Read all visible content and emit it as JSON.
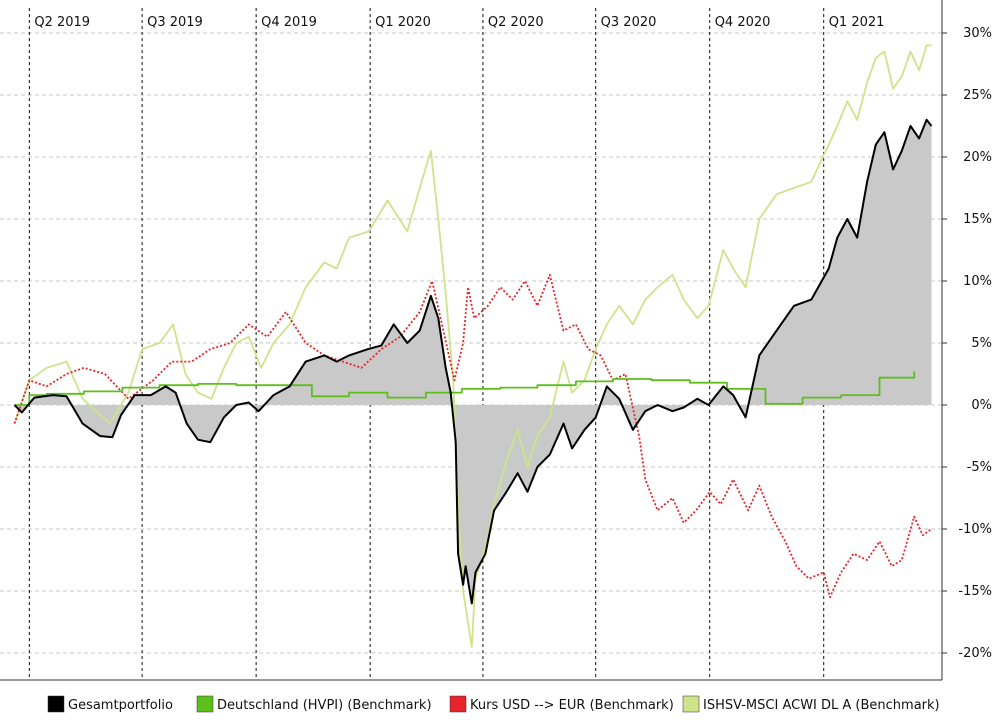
{
  "chart_data": {
    "type": "line",
    "title": "",
    "xlabel": "",
    "ylabel": "",
    "y_unit": "%",
    "ylim": [
      -21,
      30.5
    ],
    "y_ticks": [
      30,
      25,
      20,
      15,
      10,
      5,
      0,
      -5,
      -10,
      -15,
      -20
    ],
    "y_tick_labels": [
      "30%",
      "25%",
      "20%",
      "15%",
      "10%",
      "5%",
      "0%",
      "-5%",
      "-10%",
      "-15%",
      "-20%"
    ],
    "x_range": [
      "2019-03-18",
      "2021-03-31"
    ],
    "quarters": [
      {
        "label": "Q2 2019",
        "date": "2019-04-01"
      },
      {
        "label": "Q3 2019",
        "date": "2019-07-01"
      },
      {
        "label": "Q4 2019",
        "date": "2019-10-01"
      },
      {
        "label": "Q1 2020",
        "date": "2020-01-01"
      },
      {
        "label": "Q2 2020",
        "date": "2020-04-01"
      },
      {
        "label": "Q3 2020",
        "date": "2020-07-01"
      },
      {
        "label": "Q4 2020",
        "date": "2020-10-01"
      },
      {
        "label": "Q1 2021",
        "date": "2021-01-01"
      }
    ],
    "grid": "horizontal dashed",
    "legend_position": "bottom",
    "series": [
      {
        "name": "Gesamtportfolio",
        "color": "#000000",
        "style": "solid",
        "fill_to_zero": true,
        "points": [
          [
            "2019-03-20",
            0
          ],
          [
            "2019-03-26",
            -0.6
          ],
          [
            "2019-04-05",
            0.6
          ],
          [
            "2019-04-20",
            0.8
          ],
          [
            "2019-05-01",
            0.7
          ],
          [
            "2019-05-14",
            -1.5
          ],
          [
            "2019-05-28",
            -2.5
          ],
          [
            "2019-06-07",
            -2.6
          ],
          [
            "2019-06-14",
            -0.8
          ],
          [
            "2019-06-25",
            0.8
          ],
          [
            "2019-07-08",
            0.8
          ],
          [
            "2019-07-20",
            1.5
          ],
          [
            "2019-07-28",
            1.0
          ],
          [
            "2019-08-06",
            -1.5
          ],
          [
            "2019-08-15",
            -2.8
          ],
          [
            "2019-08-25",
            -3.0
          ],
          [
            "2019-09-05",
            -1.0
          ],
          [
            "2019-09-15",
            0.0
          ],
          [
            "2019-09-25",
            0.2
          ],
          [
            "2019-10-03",
            -0.5
          ],
          [
            "2019-10-15",
            0.8
          ],
          [
            "2019-10-28",
            1.5
          ],
          [
            "2019-11-10",
            3.5
          ],
          [
            "2019-11-25",
            4.0
          ],
          [
            "2019-12-05",
            3.5
          ],
          [
            "2019-12-15",
            4.0
          ],
          [
            "2019-12-30",
            4.5
          ],
          [
            "2020-01-10",
            4.8
          ],
          [
            "2020-01-20",
            6.5
          ],
          [
            "2020-01-31",
            5.0
          ],
          [
            "2020-02-10",
            6.0
          ],
          [
            "2020-02-19",
            8.8
          ],
          [
            "2020-02-25",
            7.0
          ],
          [
            "2020-03-02",
            3.0
          ],
          [
            "2020-03-06",
            1.0
          ],
          [
            "2020-03-10",
            -3.0
          ],
          [
            "2020-03-12",
            -12.0
          ],
          [
            "2020-03-16",
            -14.5
          ],
          [
            "2020-03-18",
            -13.0
          ],
          [
            "2020-03-23",
            -16.0
          ],
          [
            "2020-03-26",
            -13.5
          ],
          [
            "2020-04-03",
            -12.0
          ],
          [
            "2020-04-10",
            -8.5
          ],
          [
            "2020-04-20",
            -7.0
          ],
          [
            "2020-04-29",
            -5.5
          ],
          [
            "2020-05-07",
            -7.0
          ],
          [
            "2020-05-15",
            -5.0
          ],
          [
            "2020-05-25",
            -4.0
          ],
          [
            "2020-06-05",
            -1.5
          ],
          [
            "2020-06-12",
            -3.5
          ],
          [
            "2020-06-22",
            -2.0
          ],
          [
            "2020-07-01",
            -1.0
          ],
          [
            "2020-07-10",
            1.5
          ],
          [
            "2020-07-20",
            0.5
          ],
          [
            "2020-07-31",
            -2.0
          ],
          [
            "2020-08-10",
            -0.5
          ],
          [
            "2020-08-20",
            0.0
          ],
          [
            "2020-09-01",
            -0.5
          ],
          [
            "2020-09-10",
            -0.2
          ],
          [
            "2020-09-21",
            0.5
          ],
          [
            "2020-09-30",
            0.0
          ],
          [
            "2020-10-12",
            1.5
          ],
          [
            "2020-10-20",
            0.8
          ],
          [
            "2020-10-30",
            -1.0
          ],
          [
            "2020-11-10",
            4.0
          ],
          [
            "2020-11-24",
            6.0
          ],
          [
            "2020-12-08",
            8.0
          ],
          [
            "2020-12-22",
            8.5
          ],
          [
            "2021-01-05",
            11.0
          ],
          [
            "2021-01-12",
            13.5
          ],
          [
            "2021-01-20",
            15.0
          ],
          [
            "2021-01-28",
            13.5
          ],
          [
            "2021-02-05",
            18.0
          ],
          [
            "2021-02-12",
            21.0
          ],
          [
            "2021-02-19",
            22.0
          ],
          [
            "2021-02-26",
            19.0
          ],
          [
            "2021-03-05",
            20.5
          ],
          [
            "2021-03-12",
            22.5
          ],
          [
            "2021-03-19",
            21.5
          ],
          [
            "2021-03-25",
            23.0
          ],
          [
            "2021-03-29",
            22.5
          ]
        ]
      },
      {
        "name": "Deutschland (HVPI) (Benchmark)",
        "color": "#5cbf1c",
        "style": "solid",
        "step": true,
        "points": [
          [
            "2019-03-20",
            0
          ],
          [
            "2019-04-01",
            0.8
          ],
          [
            "2019-04-15",
            0.9
          ],
          [
            "2019-05-15",
            1.1
          ],
          [
            "2019-06-15",
            1.4
          ],
          [
            "2019-07-15",
            1.6
          ],
          [
            "2019-08-15",
            1.7
          ],
          [
            "2019-09-15",
            1.6
          ],
          [
            "2019-10-15",
            1.6
          ],
          [
            "2019-11-15",
            0.7
          ],
          [
            "2019-12-15",
            1.0
          ],
          [
            "2020-01-15",
            0.6
          ],
          [
            "2020-02-15",
            1.0
          ],
          [
            "2020-03-15",
            1.3
          ],
          [
            "2020-04-15",
            1.4
          ],
          [
            "2020-05-15",
            1.6
          ],
          [
            "2020-06-15",
            1.9
          ],
          [
            "2020-07-15",
            2.1
          ],
          [
            "2020-08-15",
            2.0
          ],
          [
            "2020-09-15",
            1.8
          ],
          [
            "2020-10-15",
            1.3
          ],
          [
            "2020-11-15",
            0.1
          ],
          [
            "2020-12-15",
            0.6
          ],
          [
            "2021-01-15",
            0.8
          ],
          [
            "2021-02-15",
            2.2
          ],
          [
            "2021-03-15",
            2.7
          ]
        ]
      },
      {
        "name": "Kurs USD --> EUR (Benchmark)",
        "color": "#e8232a",
        "style": "dotted",
        "points": [
          [
            "2019-03-20",
            -1.5
          ],
          [
            "2019-04-01",
            2.0
          ],
          [
            "2019-04-15",
            1.5
          ],
          [
            "2019-05-01",
            2.5
          ],
          [
            "2019-05-15",
            3.0
          ],
          [
            "2019-06-01",
            2.5
          ],
          [
            "2019-06-20",
            0.5
          ],
          [
            "2019-07-10",
            2.0
          ],
          [
            "2019-07-25",
            3.5
          ],
          [
            "2019-08-10",
            3.5
          ],
          [
            "2019-08-25",
            4.5
          ],
          [
            "2019-09-10",
            5.0
          ],
          [
            "2019-09-25",
            6.5
          ],
          [
            "2019-10-10",
            5.5
          ],
          [
            "2019-10-25",
            7.5
          ],
          [
            "2019-11-10",
            5.0
          ],
          [
            "2019-11-25",
            4.0
          ],
          [
            "2019-12-10",
            3.5
          ],
          [
            "2019-12-25",
            3.0
          ],
          [
            "2020-01-10",
            4.5
          ],
          [
            "2020-01-25",
            5.5
          ],
          [
            "2020-02-10",
            7.5
          ],
          [
            "2020-02-20",
            10.0
          ],
          [
            "2020-02-28",
            6.5
          ],
          [
            "2020-03-09",
            2.0
          ],
          [
            "2020-03-16",
            5.0
          ],
          [
            "2020-03-20",
            9.5
          ],
          [
            "2020-03-25",
            7.0
          ],
          [
            "2020-04-05",
            8.0
          ],
          [
            "2020-04-15",
            9.5
          ],
          [
            "2020-04-25",
            8.5
          ],
          [
            "2020-05-05",
            10.0
          ],
          [
            "2020-05-15",
            8.0
          ],
          [
            "2020-05-25",
            10.5
          ],
          [
            "2020-06-05",
            6.0
          ],
          [
            "2020-06-15",
            6.5
          ],
          [
            "2020-06-25",
            4.5
          ],
          [
            "2020-07-05",
            4.0
          ],
          [
            "2020-07-15",
            2.0
          ],
          [
            "2020-07-25",
            2.5
          ],
          [
            "2020-08-05",
            -2.5
          ],
          [
            "2020-08-10",
            -6.0
          ],
          [
            "2020-08-20",
            -8.5
          ],
          [
            "2020-09-01",
            -7.5
          ],
          [
            "2020-09-10",
            -9.5
          ],
          [
            "2020-09-20",
            -8.5
          ],
          [
            "2020-10-01",
            -7.0
          ],
          [
            "2020-10-10",
            -8.0
          ],
          [
            "2020-10-20",
            -6.0
          ],
          [
            "2020-11-01",
            -8.5
          ],
          [
            "2020-11-10",
            -6.5
          ],
          [
            "2020-11-20",
            -9.0
          ],
          [
            "2020-12-01",
            -11.0
          ],
          [
            "2020-12-10",
            -13.0
          ],
          [
            "2020-12-20",
            -14.0
          ],
          [
            "2021-01-01",
            -13.5
          ],
          [
            "2021-01-06",
            -15.5
          ],
          [
            "2021-01-15",
            -13.5
          ],
          [
            "2021-01-25",
            -12.0
          ],
          [
            "2021-02-05",
            -12.5
          ],
          [
            "2021-02-15",
            -11.0
          ],
          [
            "2021-02-25",
            -13.0
          ],
          [
            "2021-03-05",
            -12.5
          ],
          [
            "2021-03-15",
            -9.0
          ],
          [
            "2021-03-22",
            -10.5
          ],
          [
            "2021-03-29",
            -10.0
          ]
        ]
      },
      {
        "name": "ISHSV-MSCI ACWI DL A (Benchmark)",
        "color": "#cfe38a",
        "style": "solid",
        "points": [
          [
            "2019-03-20",
            -1.5
          ],
          [
            "2019-04-01",
            2.0
          ],
          [
            "2019-04-15",
            3.0
          ],
          [
            "2019-05-01",
            3.5
          ],
          [
            "2019-05-14",
            0.5
          ],
          [
            "2019-05-25",
            -0.5
          ],
          [
            "2019-06-05",
            -1.5
          ],
          [
            "2019-06-20",
            1.0
          ],
          [
            "2019-07-01",
            4.5
          ],
          [
            "2019-07-15",
            5.0
          ],
          [
            "2019-07-26",
            6.5
          ],
          [
            "2019-08-05",
            2.5
          ],
          [
            "2019-08-15",
            1.0
          ],
          [
            "2019-08-26",
            0.5
          ],
          [
            "2019-09-05",
            3.0
          ],
          [
            "2019-09-15",
            5.0
          ],
          [
            "2019-09-25",
            5.5
          ],
          [
            "2019-10-05",
            3.0
          ],
          [
            "2019-10-15",
            5.0
          ],
          [
            "2019-10-28",
            6.5
          ],
          [
            "2019-11-10",
            9.5
          ],
          [
            "2019-11-25",
            11.5
          ],
          [
            "2019-12-05",
            11.0
          ],
          [
            "2019-12-15",
            13.5
          ],
          [
            "2019-12-31",
            14.0
          ],
          [
            "2020-01-15",
            16.5
          ],
          [
            "2020-01-31",
            14.0
          ],
          [
            "2020-02-10",
            17.5
          ],
          [
            "2020-02-19",
            20.5
          ],
          [
            "2020-02-25",
            15.0
          ],
          [
            "2020-03-02",
            9.0
          ],
          [
            "2020-03-08",
            2.0
          ],
          [
            "2020-03-12",
            -8.0
          ],
          [
            "2020-03-16",
            -15.0
          ],
          [
            "2020-03-23",
            -19.5
          ],
          [
            "2020-03-26",
            -14.0
          ],
          [
            "2020-04-03",
            -11.5
          ],
          [
            "2020-04-10",
            -8.0
          ],
          [
            "2020-04-20",
            -4.5
          ],
          [
            "2020-04-29",
            -2.0
          ],
          [
            "2020-05-07",
            -5.0
          ],
          [
            "2020-05-15",
            -2.5
          ],
          [
            "2020-05-25",
            -1.0
          ],
          [
            "2020-06-05",
            3.5
          ],
          [
            "2020-06-12",
            1.0
          ],
          [
            "2020-06-22",
            2.0
          ],
          [
            "2020-07-01",
            4.5
          ],
          [
            "2020-07-10",
            6.5
          ],
          [
            "2020-07-20",
            8.0
          ],
          [
            "2020-07-31",
            6.5
          ],
          [
            "2020-08-10",
            8.5
          ],
          [
            "2020-08-20",
            9.5
          ],
          [
            "2020-09-01",
            10.5
          ],
          [
            "2020-09-10",
            8.5
          ],
          [
            "2020-09-21",
            7.0
          ],
          [
            "2020-09-30",
            8.0
          ],
          [
            "2020-10-12",
            12.5
          ],
          [
            "2020-10-20",
            11.0
          ],
          [
            "2020-10-30",
            9.5
          ],
          [
            "2020-11-10",
            15.0
          ],
          [
            "2020-11-24",
            17.0
          ],
          [
            "2020-12-08",
            17.5
          ],
          [
            "2020-12-22",
            18.0
          ],
          [
            "2021-01-05",
            21.0
          ],
          [
            "2021-01-12",
            22.5
          ],
          [
            "2021-01-20",
            24.5
          ],
          [
            "2021-01-28",
            23.0
          ],
          [
            "2021-02-05",
            26.0
          ],
          [
            "2021-02-12",
            28.0
          ],
          [
            "2021-02-19",
            28.5
          ],
          [
            "2021-02-26",
            25.5
          ],
          [
            "2021-03-05",
            26.5
          ],
          [
            "2021-03-12",
            28.5
          ],
          [
            "2021-03-19",
            27.0
          ],
          [
            "2021-03-25",
            29.0
          ],
          [
            "2021-03-29",
            29.0
          ]
        ]
      }
    ]
  }
}
